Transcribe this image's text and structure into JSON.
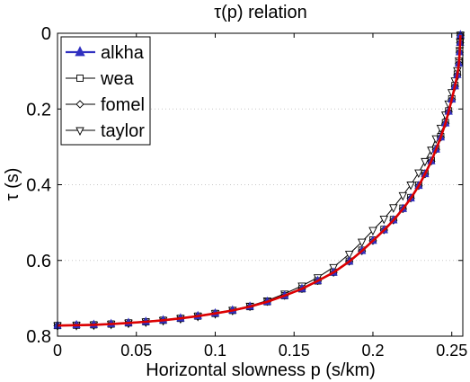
{
  "chart_data": {
    "type": "line",
    "title": "τ(p) relation",
    "xlabel": "Horizontal slowness p (s/km)",
    "ylabel": "τ (s)",
    "xlim": [
      0,
      0.257
    ],
    "ylim": [
      0,
      0.8
    ],
    "y_reversed": true,
    "grid": "dotted horizontal",
    "legend_position": "top-left",
    "xticks": [
      "0",
      "0.05",
      "0.1",
      "0.15",
      "0.2",
      "0.25"
    ],
    "xtick_values": [
      0,
      0.05,
      0.1,
      0.15,
      0.2,
      0.25
    ],
    "yticks": [
      "0",
      "0.2",
      "0.4",
      "0.6",
      "0.8"
    ],
    "ytick_values": [
      0,
      0.2,
      0.4,
      0.6,
      0.8
    ],
    "series": [
      {
        "name": "alkha",
        "color": "#3030c0",
        "marker": "triangle-up",
        "x": [
          0,
          0.012,
          0.023,
          0.034,
          0.045,
          0.056,
          0.067,
          0.078,
          0.089,
          0.1,
          0.111,
          0.122,
          0.133,
          0.144,
          0.155,
          0.165,
          0.175,
          0.185,
          0.193,
          0.2,
          0.207,
          0.213,
          0.219,
          0.224,
          0.229,
          0.233,
          0.237,
          0.24,
          0.243,
          0.246,
          0.248,
          0.25,
          0.252,
          0.2535,
          0.2545,
          0.255,
          0.2553,
          0.2555
        ],
        "y": [
          0.772,
          0.771,
          0.77,
          0.768,
          0.765,
          0.762,
          0.758,
          0.753,
          0.747,
          0.74,
          0.732,
          0.722,
          0.709,
          0.693,
          0.675,
          0.654,
          0.632,
          0.603,
          0.575,
          0.548,
          0.52,
          0.494,
          0.464,
          0.436,
          0.403,
          0.372,
          0.338,
          0.307,
          0.275,
          0.238,
          0.207,
          0.175,
          0.14,
          0.11,
          0.08,
          0.05,
          0.025,
          0.005
        ]
      },
      {
        "name": "wea",
        "color": "#000000",
        "marker": "square",
        "x": [
          0,
          0.012,
          0.023,
          0.034,
          0.045,
          0.056,
          0.067,
          0.078,
          0.089,
          0.1,
          0.111,
          0.122,
          0.133,
          0.144,
          0.155,
          0.165,
          0.175,
          0.185,
          0.193,
          0.2,
          0.207,
          0.213,
          0.219,
          0.224,
          0.229,
          0.233,
          0.237,
          0.24,
          0.243,
          0.246,
          0.248,
          0.25,
          0.252,
          0.2535,
          0.2545,
          0.255,
          0.2553,
          0.2555
        ],
        "y": [
          0.772,
          0.771,
          0.77,
          0.768,
          0.765,
          0.762,
          0.758,
          0.753,
          0.747,
          0.74,
          0.732,
          0.722,
          0.709,
          0.693,
          0.675,
          0.654,
          0.631,
          0.602,
          0.573,
          0.546,
          0.518,
          0.492,
          0.462,
          0.434,
          0.401,
          0.37,
          0.336,
          0.305,
          0.273,
          0.236,
          0.205,
          0.173,
          0.138,
          0.108,
          0.078,
          0.048,
          0.024,
          0.005
        ]
      },
      {
        "name": "fomel",
        "color": "#000000",
        "marker": "diamond",
        "x": [
          0,
          0.012,
          0.023,
          0.034,
          0.045,
          0.056,
          0.067,
          0.078,
          0.089,
          0.1,
          0.111,
          0.122,
          0.133,
          0.144,
          0.155,
          0.165,
          0.175,
          0.185,
          0.193,
          0.2,
          0.207,
          0.213,
          0.219,
          0.224,
          0.229,
          0.233,
          0.237,
          0.24,
          0.243,
          0.246,
          0.248,
          0.25,
          0.252,
          0.2535,
          0.2545,
          0.255,
          0.2553,
          0.2555
        ],
        "y": [
          0.772,
          0.771,
          0.77,
          0.768,
          0.765,
          0.762,
          0.758,
          0.753,
          0.747,
          0.74,
          0.732,
          0.722,
          0.709,
          0.693,
          0.675,
          0.654,
          0.632,
          0.603,
          0.575,
          0.548,
          0.52,
          0.494,
          0.464,
          0.436,
          0.403,
          0.372,
          0.338,
          0.307,
          0.275,
          0.238,
          0.207,
          0.175,
          0.14,
          0.11,
          0.08,
          0.05,
          0.025,
          0.005
        ]
      },
      {
        "name": "taylor",
        "color": "#000000",
        "marker": "triangle-down",
        "x": [
          0,
          0.012,
          0.023,
          0.034,
          0.045,
          0.056,
          0.067,
          0.078,
          0.089,
          0.1,
          0.111,
          0.122,
          0.133,
          0.144,
          0.155,
          0.165,
          0.175,
          0.185,
          0.193,
          0.2,
          0.207,
          0.213,
          0.219,
          0.224,
          0.229,
          0.233,
          0.237,
          0.24,
          0.243,
          0.246,
          0.248,
          0.25,
          0.252,
          0.2535,
          0.2545,
          0.255,
          0.2553,
          0.2555
        ],
        "y": [
          0.772,
          0.771,
          0.77,
          0.768,
          0.765,
          0.762,
          0.758,
          0.753,
          0.747,
          0.74,
          0.731,
          0.72,
          0.706,
          0.688,
          0.667,
          0.645,
          0.618,
          0.583,
          0.551,
          0.52,
          0.49,
          0.46,
          0.428,
          0.4,
          0.368,
          0.338,
          0.308,
          0.278,
          0.25,
          0.215,
          0.186,
          0.156,
          0.125,
          0.098,
          0.072,
          0.045,
          0.022,
          0.005
        ]
      },
      {
        "name": "",
        "color": "#dd0000",
        "marker": "none",
        "x": [
          0,
          0.012,
          0.023,
          0.034,
          0.045,
          0.056,
          0.067,
          0.078,
          0.089,
          0.1,
          0.111,
          0.122,
          0.133,
          0.144,
          0.155,
          0.165,
          0.175,
          0.185,
          0.193,
          0.2,
          0.207,
          0.213,
          0.219,
          0.224,
          0.229,
          0.233,
          0.237,
          0.24,
          0.243,
          0.246,
          0.248,
          0.25,
          0.252,
          0.2535,
          0.2545,
          0.255,
          0.2553,
          0.2555
        ],
        "y": [
          0.772,
          0.771,
          0.77,
          0.768,
          0.765,
          0.762,
          0.758,
          0.753,
          0.747,
          0.74,
          0.732,
          0.722,
          0.709,
          0.693,
          0.675,
          0.654,
          0.632,
          0.603,
          0.575,
          0.548,
          0.52,
          0.494,
          0.464,
          0.436,
          0.403,
          0.372,
          0.338,
          0.307,
          0.275,
          0.238,
          0.207,
          0.175,
          0.14,
          0.11,
          0.08,
          0.05,
          0.025,
          0.005
        ]
      }
    ]
  }
}
